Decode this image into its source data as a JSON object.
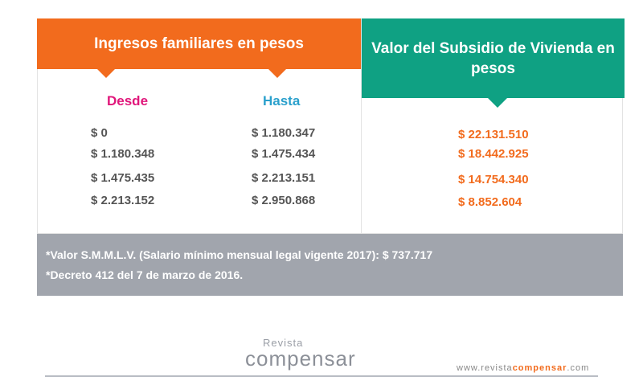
{
  "header": {
    "income_title": "Ingresos familiares en pesos",
    "subsidy_title": "Valor del Subsidio  de Vivienda en pesos"
  },
  "columns": {
    "desde": "Desde",
    "hasta": "Hasta"
  },
  "rows": [
    {
      "desde": "$ 0",
      "hasta": "$ 1.180.347",
      "subsidio": "$ 22.131.510"
    },
    {
      "desde": "$ 1.180.348",
      "hasta": "$ 1.475.434",
      "subsidio": "$ 18.442.925"
    },
    {
      "desde": "$ 1.475.435",
      "hasta": "$ 2.213.151",
      "subsidio": "$ 14.754.340"
    },
    {
      "desde": "$ 2.213.152",
      "hasta": "$ 2.950.868",
      "subsidio": "$ 8.852.604"
    }
  ],
  "notes": [
    "*Valor S.M.M.L.V. (Salario mínimo mensual legal vigente 2017): $ 737.717",
    "*Decreto 412 del 7 de marzo de 2016."
  ],
  "logo": {
    "small": "Revista",
    "big": "compensar"
  },
  "url": {
    "prefix": "www.revista",
    "accent": "compensar",
    "suffix": ".com"
  },
  "colors": {
    "orange": "#f26b1d",
    "green": "#0fa183",
    "pink": "#e0167a",
    "blue": "#2aa0cc",
    "gray_band": "#a1a5ad"
  }
}
